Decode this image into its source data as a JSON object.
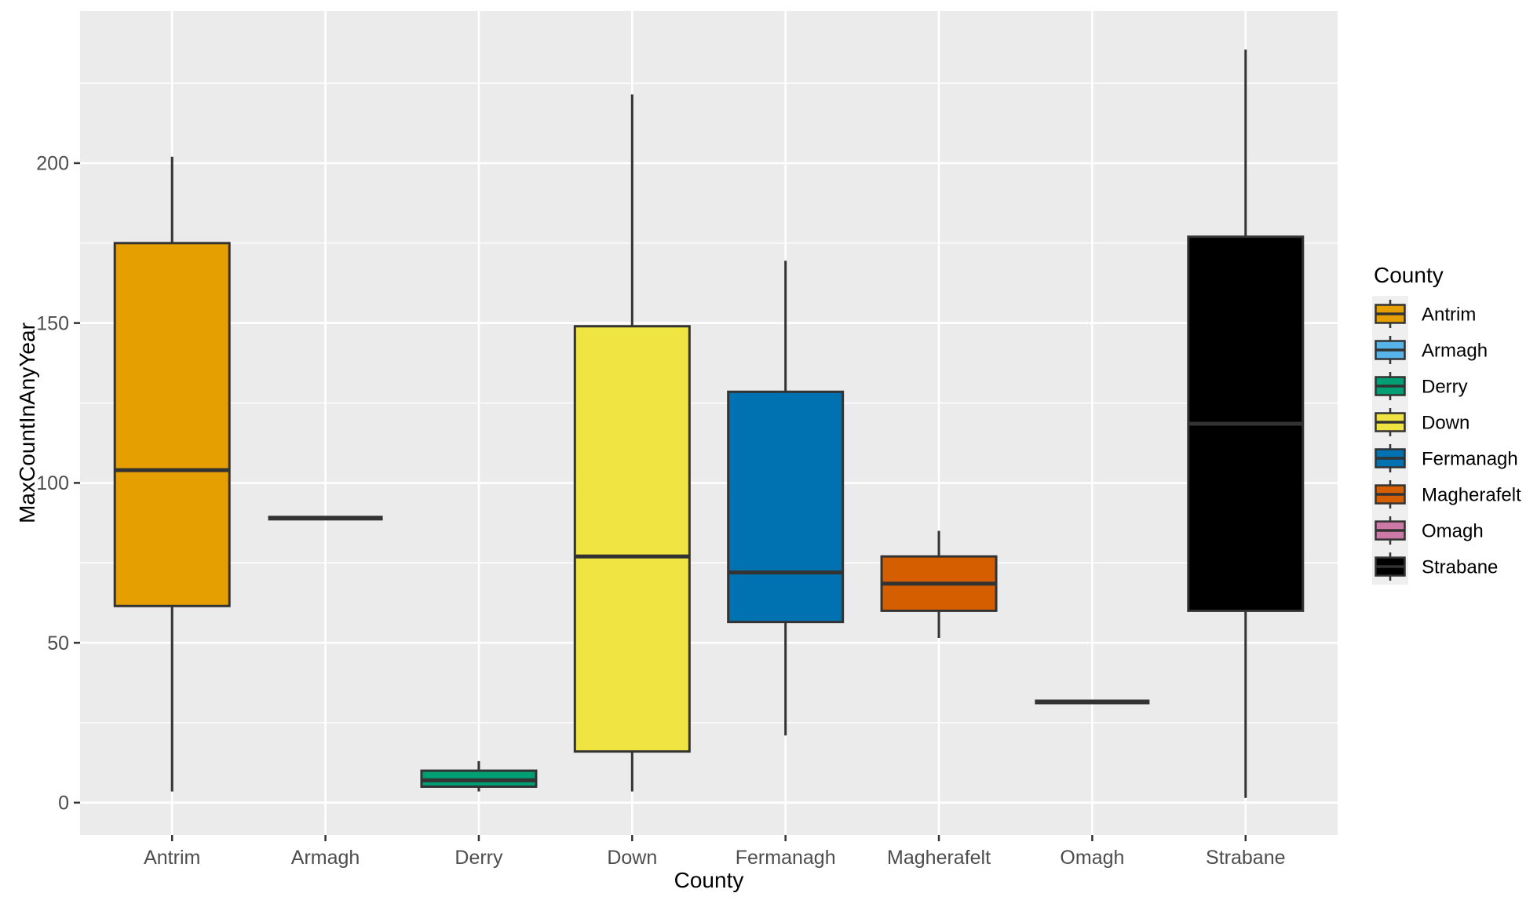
{
  "chart_data": {
    "type": "boxplot",
    "title": "",
    "xlabel": "County",
    "ylabel": "MaxCountInAnyYear",
    "legend": {
      "title": "County",
      "position": "right",
      "entries": [
        "Antrim",
        "Armagh",
        "Derry",
        "Down",
        "Fermanagh",
        "Magherafelt",
        "Omagh",
        "Strabane"
      ]
    },
    "y_axis": {
      "ticks": [
        0,
        50,
        100,
        150,
        200
      ],
      "minor_ticks": [
        25,
        75,
        125,
        175,
        225
      ],
      "range": [
        -10.1,
        247.6
      ],
      "grid": true
    },
    "x_axis": {
      "categories": [
        "Antrim",
        "Armagh",
        "Derry",
        "Down",
        "Fermanagh",
        "Magherafelt",
        "Omagh",
        "Strabane"
      ],
      "grid": true
    },
    "series": [
      {
        "name": "Antrim",
        "color": "#E69F00",
        "min": 3.5,
        "q1": 61.5,
        "median": 104,
        "q3": 175,
        "max": 202
      },
      {
        "name": "Armagh",
        "color": "#56B4E9",
        "min": 89,
        "q1": 89,
        "median": 89,
        "q3": 89,
        "max": 89
      },
      {
        "name": "Derry",
        "color": "#009E73",
        "min": 3.5,
        "q1": 5,
        "median": 7,
        "q3": 10,
        "max": 13
      },
      {
        "name": "Down",
        "color": "#F0E442",
        "min": 3.5,
        "q1": 16,
        "median": 77,
        "q3": 149,
        "max": 221.5
      },
      {
        "name": "Fermanagh",
        "color": "#0072B2",
        "min": 21,
        "q1": 56.5,
        "median": 72,
        "q3": 128.5,
        "max": 169.5
      },
      {
        "name": "Magherafelt",
        "color": "#D55E00",
        "min": 51.5,
        "q1": 60,
        "median": 68.5,
        "q3": 77,
        "max": 85
      },
      {
        "name": "Omagh",
        "color": "#CC79A7",
        "min": 31.5,
        "q1": 31.5,
        "median": 31.5,
        "q3": 31.5,
        "max": 31.5
      },
      {
        "name": "Strabane",
        "color": "#000000",
        "min": 1.5,
        "q1": 60,
        "median": 118.5,
        "q3": 177,
        "max": 235.5
      }
    ],
    "style": {
      "panel_bg": "#EBEBEB",
      "grid_color": "#FFFFFF",
      "box_border": "#333333",
      "tick_text": "#4D4D4D",
      "title_text": "#000000",
      "legend_key_bg": "#EFEFEF"
    }
  }
}
